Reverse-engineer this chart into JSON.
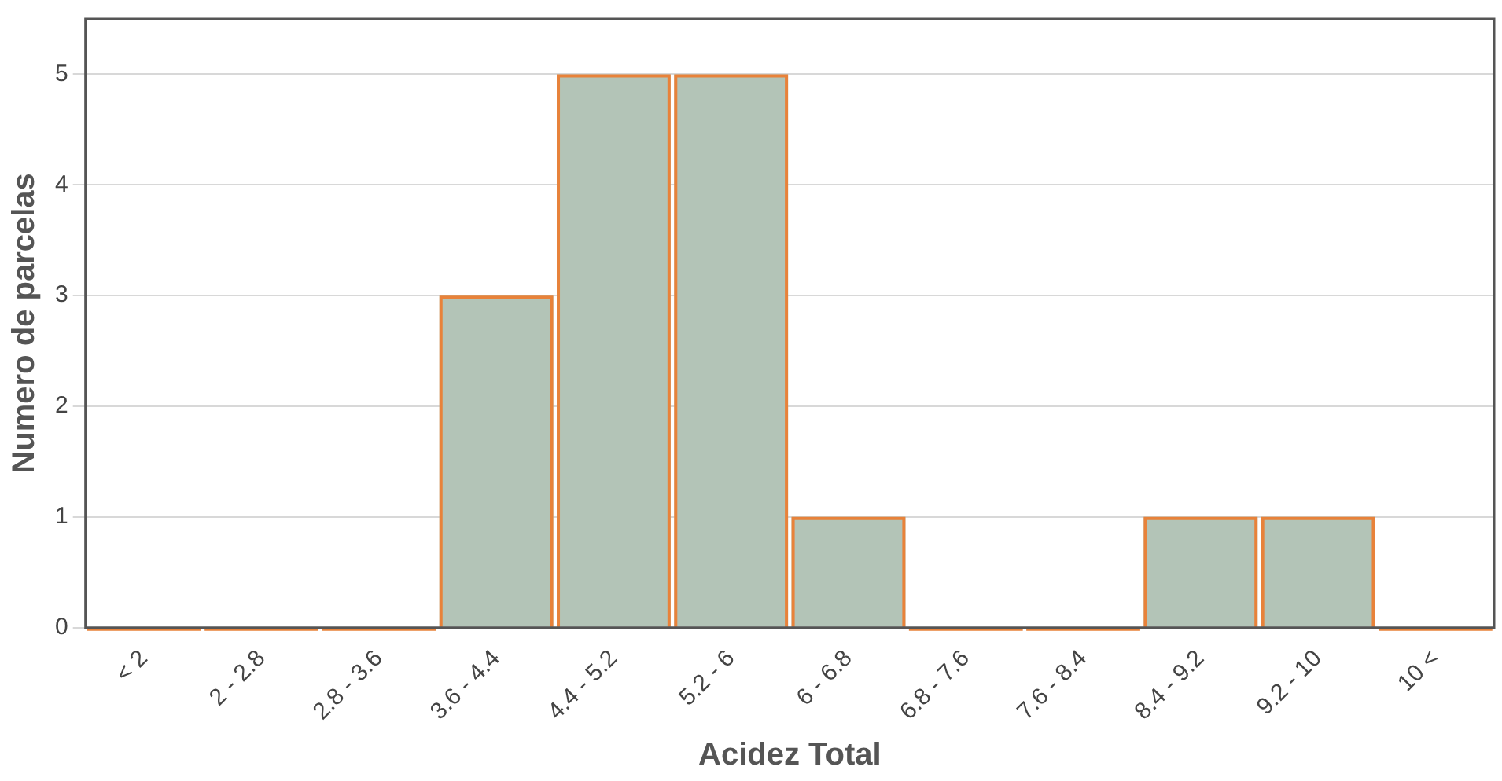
{
  "chart_data": {
    "type": "bar",
    "xlabel": "Acidez Total",
    "ylabel": "Numero de parcelas",
    "categories": [
      "< 2",
      "2 - 2.8",
      "2.8 - 3.6",
      "3.6 - 4.4",
      "4.4 - 5.2",
      "5.2 - 6",
      "6 - 6.8",
      "6.8 - 7.6",
      "7.6 - 8.4",
      "8.4 - 9.2",
      "9.2 - 10",
      "10 <"
    ],
    "series": [
      {
        "color": "#b3c4b7",
        "values": [
          0,
          0,
          0,
          3,
          5,
          5,
          1,
          0,
          0,
          1,
          1,
          0
        ]
      }
    ],
    "ylim": [
      0,
      5.5
    ],
    "yticks": [
      0,
      1,
      2,
      3,
      4,
      5
    ],
    "grid": "y",
    "legend": false
  }
}
